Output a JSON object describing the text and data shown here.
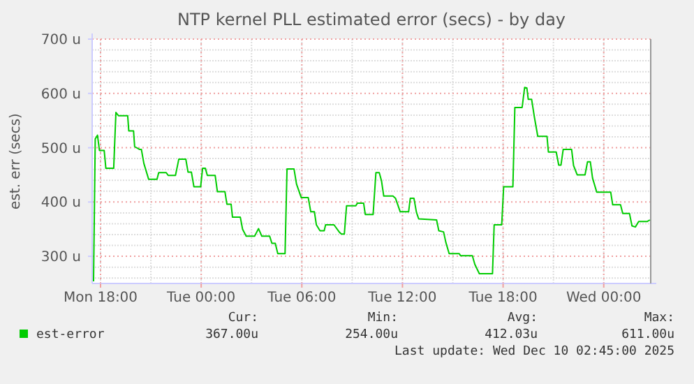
{
  "chart_data": {
    "type": "line",
    "title": "NTP kernel PLL estimated error (secs) - by day",
    "ylabel": "est. err (secs)",
    "xlim": [
      "2025-12-08T17:30",
      "2025-12-10T02:48"
    ],
    "xticks": [
      {
        "value": "2025-12-08T18:00",
        "label": "Mon 18:00"
      },
      {
        "value": "2025-12-09T00:00",
        "label": "Tue 00:00"
      },
      {
        "value": "2025-12-09T06:00",
        "label": "Tue 06:00"
      },
      {
        "value": "2025-12-09T12:00",
        "label": "Tue 12:00"
      },
      {
        "value": "2025-12-09T18:00",
        "label": "Tue 18:00"
      },
      {
        "value": "2025-12-10T00:00",
        "label": "Wed 00:00"
      }
    ],
    "ylim": [
      250,
      700
    ],
    "yticks": [
      {
        "value": 300,
        "label": "300 u"
      },
      {
        "value": 400,
        "label": "400 u"
      },
      {
        "value": 500,
        "label": "500 u"
      },
      {
        "value": 600,
        "label": "600 u"
      },
      {
        "value": 700,
        "label": "700 u"
      }
    ],
    "grid": true,
    "legend": "bottom",
    "marker": "none",
    "line_style": "solid",
    "series": [
      {
        "name": "est-error",
        "color": "#00cc00",
        "x": [
          "2025-12-08T17:35",
          "2025-12-08T17:41",
          "2025-12-08T17:49",
          "2025-12-08T17:56",
          "2025-12-08T18:13",
          "2025-12-08T18:19",
          "2025-12-08T18:47",
          "2025-12-08T18:55",
          "2025-12-08T19:04",
          "2025-12-08T19:37",
          "2025-12-08T19:41",
          "2025-12-08T19:58",
          "2025-12-08T20:02",
          "2025-12-08T20:19",
          "2025-12-08T20:26",
          "2025-12-08T20:35",
          "2025-12-08T20:52",
          "2025-12-08T21:22",
          "2025-12-08T21:28",
          "2025-12-08T21:55",
          "2025-12-08T22:02",
          "2025-12-08T22:28",
          "2025-12-08T22:40",
          "2025-12-08T23:05",
          "2025-12-08T23:13",
          "2025-12-08T23:25",
          "2025-12-08T23:34",
          "2025-12-08T23:58",
          "2025-12-09T00:05",
          "2025-12-09T00:15",
          "2025-12-09T00:22",
          "2025-12-09T00:50",
          "2025-12-09T00:58",
          "2025-12-09T01:25",
          "2025-12-09T01:32",
          "2025-12-09T01:47",
          "2025-12-09T01:52",
          "2025-12-09T02:20",
          "2025-12-09T02:28",
          "2025-12-09T02:41",
          "2025-12-09T03:11",
          "2025-12-09T03:25",
          "2025-12-09T03:37",
          "2025-12-09T04:05",
          "2025-12-09T04:13",
          "2025-12-09T04:25",
          "2025-12-09T04:34",
          "2025-12-09T05:00",
          "2025-12-09T05:07",
          "2025-12-09T05:32",
          "2025-12-09T05:41",
          "2025-12-09T05:58",
          "2025-12-09T06:23",
          "2025-12-09T06:32",
          "2025-12-09T06:45",
          "2025-12-09T06:52",
          "2025-12-09T07:05",
          "2025-12-09T07:20",
          "2025-12-09T07:25",
          "2025-12-09T07:55",
          "2025-12-09T08:15",
          "2025-12-09T08:22",
          "2025-12-09T08:32",
          "2025-12-09T08:40",
          "2025-12-09T09:13",
          "2025-12-09T09:19",
          "2025-12-09T09:41",
          "2025-12-09T09:47",
          "2025-12-09T10:15",
          "2025-12-09T10:25",
          "2025-12-09T10:37",
          "2025-12-09T10:45",
          "2025-12-09T10:53",
          "2025-12-09T11:26",
          "2025-12-09T11:35",
          "2025-12-09T11:52",
          "2025-12-09T12:22",
          "2025-12-09T12:28",
          "2025-12-09T12:41",
          "2025-12-09T12:50",
          "2025-12-09T12:58",
          "2025-12-09T14:02",
          "2025-12-09T14:10",
          "2025-12-09T14:27",
          "2025-12-09T14:35",
          "2025-12-09T14:47",
          "2025-12-09T15:23",
          "2025-12-09T15:28",
          "2025-12-09T16:10",
          "2025-12-09T16:19",
          "2025-12-09T16:35",
          "2025-12-09T17:22",
          "2025-12-09T17:28",
          "2025-12-09T17:55",
          "2025-12-09T18:02",
          "2025-12-09T18:35",
          "2025-12-09T18:42",
          "2025-12-09T19:08",
          "2025-12-09T19:17",
          "2025-12-09T19:25",
          "2025-12-09T19:30",
          "2025-12-09T19:42",
          "2025-12-09T19:52",
          "2025-12-09T20:04",
          "2025-12-09T20:37",
          "2025-12-09T20:42",
          "2025-12-09T21:10",
          "2025-12-09T21:19",
          "2025-12-09T21:27",
          "2025-12-09T21:35",
          "2025-12-09T22:05",
          "2025-12-09T22:12",
          "2025-12-09T22:25",
          "2025-12-09T22:53",
          "2025-12-09T23:02",
          "2025-12-09T23:12",
          "2025-12-09T23:20",
          "2025-12-09T23:35",
          "2025-12-10T00:25",
          "2025-12-10T00:32",
          "2025-12-10T01:00",
          "2025-12-10T01:08",
          "2025-12-10T01:32",
          "2025-12-10T01:41",
          "2025-12-10T01:53",
          "2025-12-10T02:05",
          "2025-12-10T02:35",
          "2025-12-10T02:45"
        ],
        "values": [
          254,
          516,
          523,
          495,
          495,
          462,
          462,
          565,
          559,
          559,
          531,
          531,
          502,
          497,
          497,
          471,
          442,
          442,
          454,
          454,
          449,
          449,
          479,
          479,
          455,
          455,
          428,
          428,
          462,
          462,
          449,
          449,
          419,
          419,
          396,
          396,
          372,
          372,
          350,
          337,
          337,
          351,
          337,
          337,
          324,
          324,
          305,
          305,
          461,
          461,
          433,
          408,
          408,
          382,
          382,
          358,
          347,
          347,
          358,
          358,
          344,
          341,
          341,
          393,
          393,
          398,
          398,
          377,
          377,
          454,
          454,
          439,
          411,
          411,
          407,
          382,
          382,
          407,
          407,
          381,
          369,
          367,
          347,
          345,
          326,
          305,
          305,
          301,
          301,
          285,
          268,
          268,
          358,
          358,
          428,
          428,
          574,
          574,
          611,
          610,
          589,
          589,
          556,
          521,
          521,
          492,
          492,
          468,
          468,
          497,
          497,
          467,
          450,
          450,
          474,
          474,
          444,
          418,
          418,
          395,
          395,
          379,
          379,
          356,
          354,
          364,
          364,
          367
        ]
      }
    ],
    "annotations": [
      "Cur:",
      "367.00u",
      "Min:",
      "254.00u",
      "Avg:",
      "412.03u",
      "Max:",
      "611.00u",
      "Last update: Wed Dec 10 02:45:00 2025"
    ]
  }
}
